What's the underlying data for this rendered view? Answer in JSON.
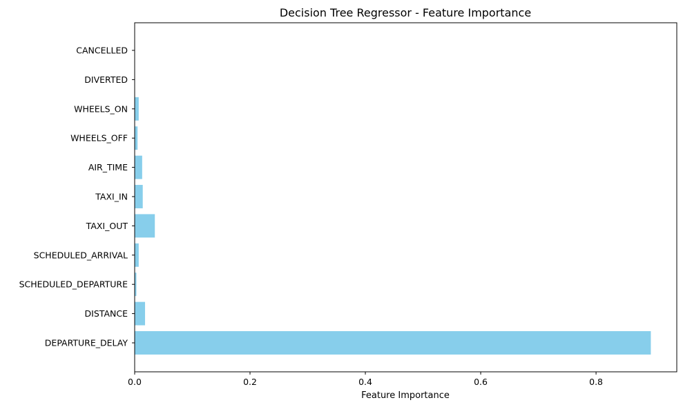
{
  "chart_data": {
    "type": "bar",
    "orientation": "horizontal",
    "title": "Decision Tree Regressor - Feature Importance",
    "xlabel": "Feature Importance",
    "ylabel": "",
    "categories": [
      "DEPARTURE_DELAY",
      "DISTANCE",
      "SCHEDULED_DEPARTURE",
      "SCHEDULED_ARRIVAL",
      "TAXI_OUT",
      "TAXI_IN",
      "AIR_TIME",
      "WHEELS_OFF",
      "WHEELS_ON",
      "DIVERTED",
      "CANCELLED"
    ],
    "values": [
      0.895,
      0.018,
      0.003,
      0.007,
      0.035,
      0.014,
      0.013,
      0.005,
      0.007,
      0.0,
      0.0
    ],
    "xlim": [
      0,
      0.94
    ],
    "xticks": [
      0.0,
      0.2,
      0.4,
      0.6,
      0.8
    ],
    "xtick_labels": [
      "0.0",
      "0.2",
      "0.4",
      "0.6",
      "0.8"
    ],
    "grid": false,
    "legend": "none",
    "bar_color": "#87ceeb"
  }
}
